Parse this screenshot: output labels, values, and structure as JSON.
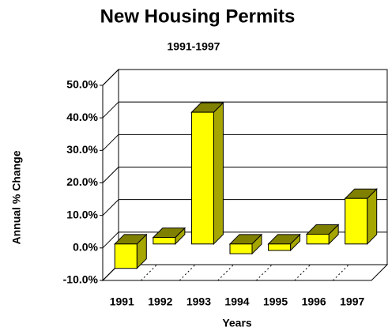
{
  "chart_data": {
    "type": "bar3d",
    "title": "New Housing Permits",
    "subtitle": "1991-1997",
    "x_label": "Years",
    "y_label": "Annual % Change",
    "categories": [
      "1991",
      "1992",
      "1993",
      "1994",
      "1995",
      "1996",
      "1997"
    ],
    "values": [
      -7.5,
      2,
      40.5,
      -3,
      -2,
      3,
      14
    ],
    "color": "#ffff00",
    "top_color": "#808000",
    "side_color": "#a6a600",
    "ylim": [
      -10,
      50
    ],
    "yticks": [
      {
        "value": -10,
        "label": "-10.0%"
      },
      {
        "value": 0,
        "label": "0.0%"
      },
      {
        "value": 10,
        "label": "10.0%"
      },
      {
        "value": 20,
        "label": "20.0%"
      },
      {
        "value": 30,
        "label": "30.0%"
      },
      {
        "value": 40,
        "label": "40.0%"
      },
      {
        "value": 50,
        "label": "50.0%"
      }
    ],
    "grid": true
  }
}
